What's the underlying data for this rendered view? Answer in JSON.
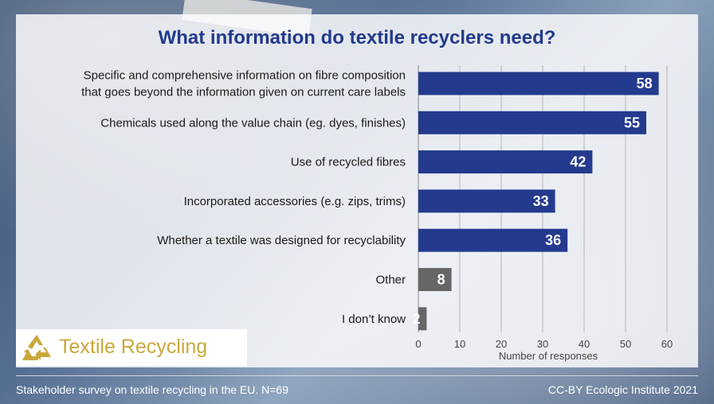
{
  "header": {
    "title": "What information do textile recyclers need?"
  },
  "footer": {
    "left": "Stakeholder survey on textile recycling in the EU. N=69",
    "right": "CC-BY Ecologic Institute 2021"
  },
  "logo": {
    "text": "Textile Recycling",
    "icon": "recycle-icon",
    "color": "#c9a83a"
  },
  "colors": {
    "primary_bar": "#233a8e",
    "other_bar": "#666666"
  },
  "chart_data": {
    "type": "bar",
    "orientation": "horizontal",
    "xlabel": "Number of responses",
    "xlim": [
      0,
      60
    ],
    "xticks": [
      0,
      10,
      20,
      30,
      40,
      50,
      60
    ],
    "grid": true,
    "categories": [
      [
        "Specific and comprehensive information on fibre composition",
        "that goes beyond the information given on current care labels"
      ],
      [
        "Chemicals used along the value chain (eg. dyes, finishes)"
      ],
      [
        "Use of recycled fibres"
      ],
      [
        "Incorporated accessories (e.g. zips, trims)"
      ],
      [
        "Whether a textile was designed for recyclability"
      ],
      [
        "Other"
      ],
      [
        "I don’t know"
      ]
    ],
    "values": [
      58,
      55,
      42,
      33,
      36,
      8,
      2
    ],
    "bar_colors": [
      "#233a8e",
      "#233a8e",
      "#233a8e",
      "#233a8e",
      "#233a8e",
      "#666666",
      "#666666"
    ]
  }
}
